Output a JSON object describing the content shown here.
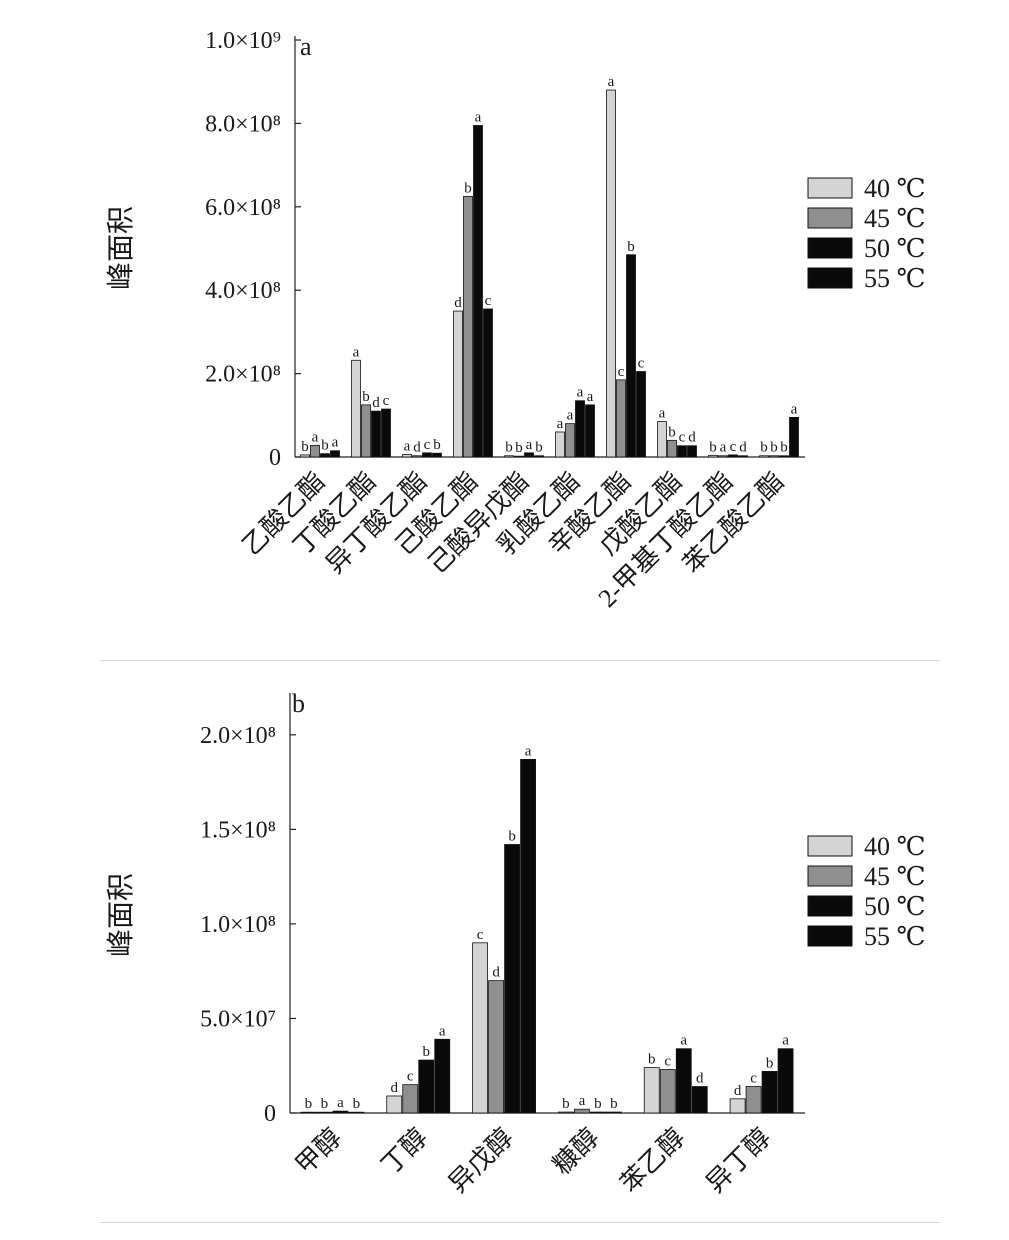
{
  "chart_data": [
    {
      "type": "bar",
      "panel_label": "a",
      "ylabel": "峰面积",
      "ylim": [
        0,
        1000000000
      ],
      "yticks": [
        {
          "value": 0,
          "label": "0"
        },
        {
          "value": 200000000,
          "label": "2.0×10⁸"
        },
        {
          "value": 400000000,
          "label": "4.0×10⁸"
        },
        {
          "value": 600000000,
          "label": "6.0×10⁸"
        },
        {
          "value": 800000000,
          "label": "8.0×10⁸"
        },
        {
          "value": 1000000000,
          "label": "1.0×10⁹"
        }
      ],
      "categories": [
        "乙酸乙酯",
        "丁酸乙酯",
        "异丁酸乙酯",
        "己酸乙酯",
        "己酸异戊酯",
        "乳酸乙酯",
        "辛酸乙酯",
        "戊酸乙酯",
        "2-甲基丁酸乙酯",
        "苯乙酸乙酯"
      ],
      "legend": {
        "placement": "right",
        "entries": [
          "40 ℃",
          "45 ℃",
          "50 ℃",
          "55 ℃"
        ]
      },
      "series": [
        {
          "name": "40 ℃",
          "color": "#d4d4d4",
          "values": [
            5000000,
            232000000,
            6000000,
            350000000,
            3000000,
            60000000,
            880000000,
            85000000,
            4000000,
            3000000
          ],
          "letters": [
            "b",
            "a",
            "a",
            "d",
            "b",
            "a",
            "a",
            "a",
            "b",
            "b"
          ]
        },
        {
          "name": "45 ℃",
          "color": "#8f8f8f",
          "values": [
            28000000,
            125000000,
            3000000,
            625000000,
            2000000,
            80000000,
            185000000,
            40000000,
            3000000,
            3000000
          ],
          "letters": [
            "a",
            "b",
            "d",
            "b",
            "b",
            "a",
            "c",
            "b",
            "a",
            "b"
          ]
        },
        {
          "name": "50 ℃",
          "color": "#0a0a0a",
          "values": [
            8000000,
            110000000,
            10000000,
            795000000,
            10000000,
            135000000,
            485000000,
            27000000,
            5000000,
            3000000
          ],
          "letters": [
            "b",
            "d",
            "c",
            "a",
            "a",
            "a",
            "b",
            "c",
            "c",
            "b"
          ]
        },
        {
          "name": "55 ℃",
          "color": "#0a0a0a",
          "values": [
            15000000,
            115000000,
            9000000,
            355000000,
            3000000,
            125000000,
            205000000,
            27000000,
            3000000,
            95000000
          ],
          "letters": [
            "a",
            "c",
            "b",
            "c",
            "b",
            "a",
            "c",
            "d",
            "d",
            "a"
          ]
        }
      ]
    },
    {
      "type": "bar",
      "panel_label": "b",
      "ylabel": "峰面积",
      "ylim": [
        0,
        220000000
      ],
      "yticks": [
        {
          "value": 0,
          "label": "0"
        },
        {
          "value": 50000000,
          "label": "5.0×10⁷"
        },
        {
          "value": 100000000,
          "label": "1.0×10⁸"
        },
        {
          "value": 150000000,
          "label": "1.5×10⁸"
        },
        {
          "value": 200000000,
          "label": "2.0×10⁸"
        }
      ],
      "categories": [
        "甲醇",
        "丁醇",
        "异戊醇",
        "糠醇",
        "苯乙醇",
        "异丁醇"
      ],
      "legend": {
        "placement": "right",
        "entries": [
          "40 ℃",
          "45 ℃",
          "50 ℃",
          "55 ℃"
        ]
      },
      "series": [
        {
          "name": "40 ℃",
          "color": "#d4d4d4",
          "values": [
            300000,
            9000000,
            90000000,
            500000,
            24000000,
            7500000
          ],
          "letters": [
            "b",
            "d",
            "c",
            "b",
            "b",
            "d"
          ]
        },
        {
          "name": "45 ℃",
          "color": "#8f8f8f",
          "values": [
            300000,
            15000000,
            70000000,
            2000000,
            23000000,
            14000000
          ],
          "letters": [
            "b",
            "c",
            "d",
            "a",
            "c",
            "c"
          ]
        },
        {
          "name": "50 ℃",
          "color": "#0a0a0a",
          "values": [
            1000000,
            28000000,
            142000000,
            500000,
            34000000,
            22000000
          ],
          "letters": [
            "a",
            "b",
            "b",
            "b",
            "a",
            "b"
          ]
        },
        {
          "name": "55 ℃",
          "color": "#0a0a0a",
          "values": [
            300000,
            39000000,
            187000000,
            500000,
            14000000,
            34000000
          ],
          "letters": [
            "b",
            "a",
            "a",
            "b",
            "d",
            "a"
          ]
        }
      ]
    }
  ]
}
